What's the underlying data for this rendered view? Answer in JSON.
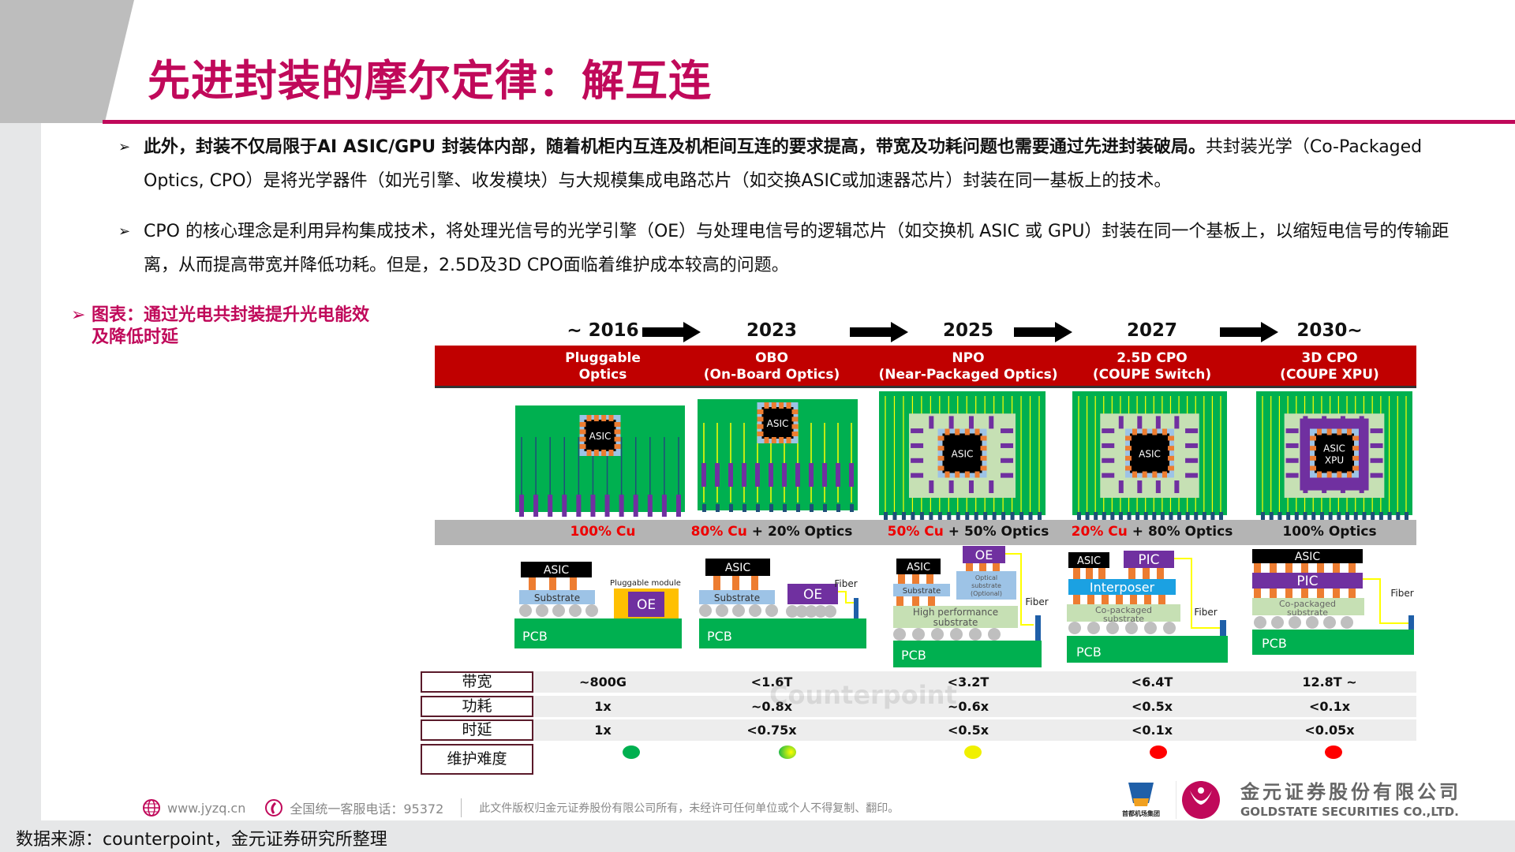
{
  "title": "先进封装的摩尔定律：解互连",
  "bullets": [
    {
      "marker": "➢",
      "bold": "此外，封装不仅局限于AI ASIC/GPU 封装体内部，随着机柜内互连及机柜间互连的要求提高，带宽及功耗问题也需要通过先进封装破局。",
      "text": "共封装光学（Co-Packaged Optics, CPO）是将光学器件（如光引擎、收发模块）与大规模集成电路芯片（如交换ASIC或加速器芯片）封装在同一基板上的技术。"
    },
    {
      "marker": "➢",
      "bold": "",
      "text": "CPO 的核心理念是利用异构集成技术，将处理光信号的光学引擎（OE）与处理电信号的逻辑芯片（如交换机 ASIC 或 GPU）封装在同一个基板上，以缩短电信号的传输距离，从而提高带宽并降低功耗。但是，2.5D及3D CPO面临着维护成本较高的问题。"
    }
  ],
  "figure_label": {
    "marker": "➢",
    "text": "图表：通过光电共封装提升光电能效及降低时延"
  },
  "colors": {
    "accent": "#c0095a",
    "band_red": "#c00000",
    "pcb_green": "#00b050",
    "purple": "#7030a0"
  },
  "columns": [
    {
      "year": "~ 2016",
      "name": "Pluggable",
      "sub": "Optics",
      "cu": "100% Cu",
      "optics": "",
      "bandwidth": "~800G",
      "power": "1x",
      "latency": "1x",
      "maintenance": "low",
      "dot": "#00b050"
    },
    {
      "year": "2023",
      "name": "OBO",
      "sub": "(On-Board Optics)",
      "cu": "80% Cu",
      "optics": " + 20% Optics",
      "bandwidth": "<1.6T",
      "power": "~0.8x",
      "latency": "<0.75x",
      "maintenance": "low-medium",
      "dot": "#9acd32"
    },
    {
      "year": "2025",
      "name": "NPO",
      "sub": "(Near-Packaged Optics)",
      "cu": "50% Cu",
      "optics": " + 50% Optics",
      "bandwidth": "<3.2T",
      "power": "~0.6x",
      "latency": "<0.5x",
      "maintenance": "medium",
      "dot": "#f0f000"
    },
    {
      "year": "2027",
      "name": "2.5D CPO",
      "sub": "(COUPE Switch)",
      "cu": "20% Cu",
      "optics": " + 80% Optics",
      "bandwidth": "<6.4T",
      "power": "<0.5x",
      "latency": "<0.1x",
      "maintenance": "high",
      "dot": "#ff0000"
    },
    {
      "year": "2030~",
      "name": "3D CPO",
      "sub": "(COUPE XPU)",
      "cu": "",
      "optics": "100% Optics",
      "bandwidth": "12.8T ~",
      "power": "<0.1x",
      "latency": "<0.05x",
      "maintenance": "high",
      "dot": "#ff0000"
    }
  ],
  "diagram_labels": {
    "asic": "ASIC",
    "xpu": "XPU",
    "substrate": "Substrate",
    "pcb": "PCB",
    "oe": "OE",
    "pic": "PIC",
    "fiber": "Fiber",
    "pluggable": "Pluggable module",
    "optical_sub1": "Optical",
    "optical_sub2": "substrate",
    "optical_sub3": "(Optional)",
    "hp1": "High performance",
    "hp2": "substrate",
    "interposer": "Interposer",
    "cop1": "Co-packaged",
    "cop2": "substrate"
  },
  "rows": {
    "bandwidth": "带宽",
    "power": "功耗",
    "latency": "时延",
    "maintenance": "维护难度"
  },
  "watermark": "Counterpoint",
  "footer": {
    "website": "www.jyzq.cn",
    "hotline": "全国统一客服电话：95372",
    "copyright": "此文件版权归金元证券股份有限公司所有，未经许可任何单位或个人不得复制、翻印。"
  },
  "logos": {
    "airport": "首都机场集团",
    "company_cn": "金元证券股份有限公司",
    "company_en": "GOLDSTATE SECURITIES CO.,LTD."
  },
  "source": "数据来源：counterpoint，金元证券研究所整理"
}
